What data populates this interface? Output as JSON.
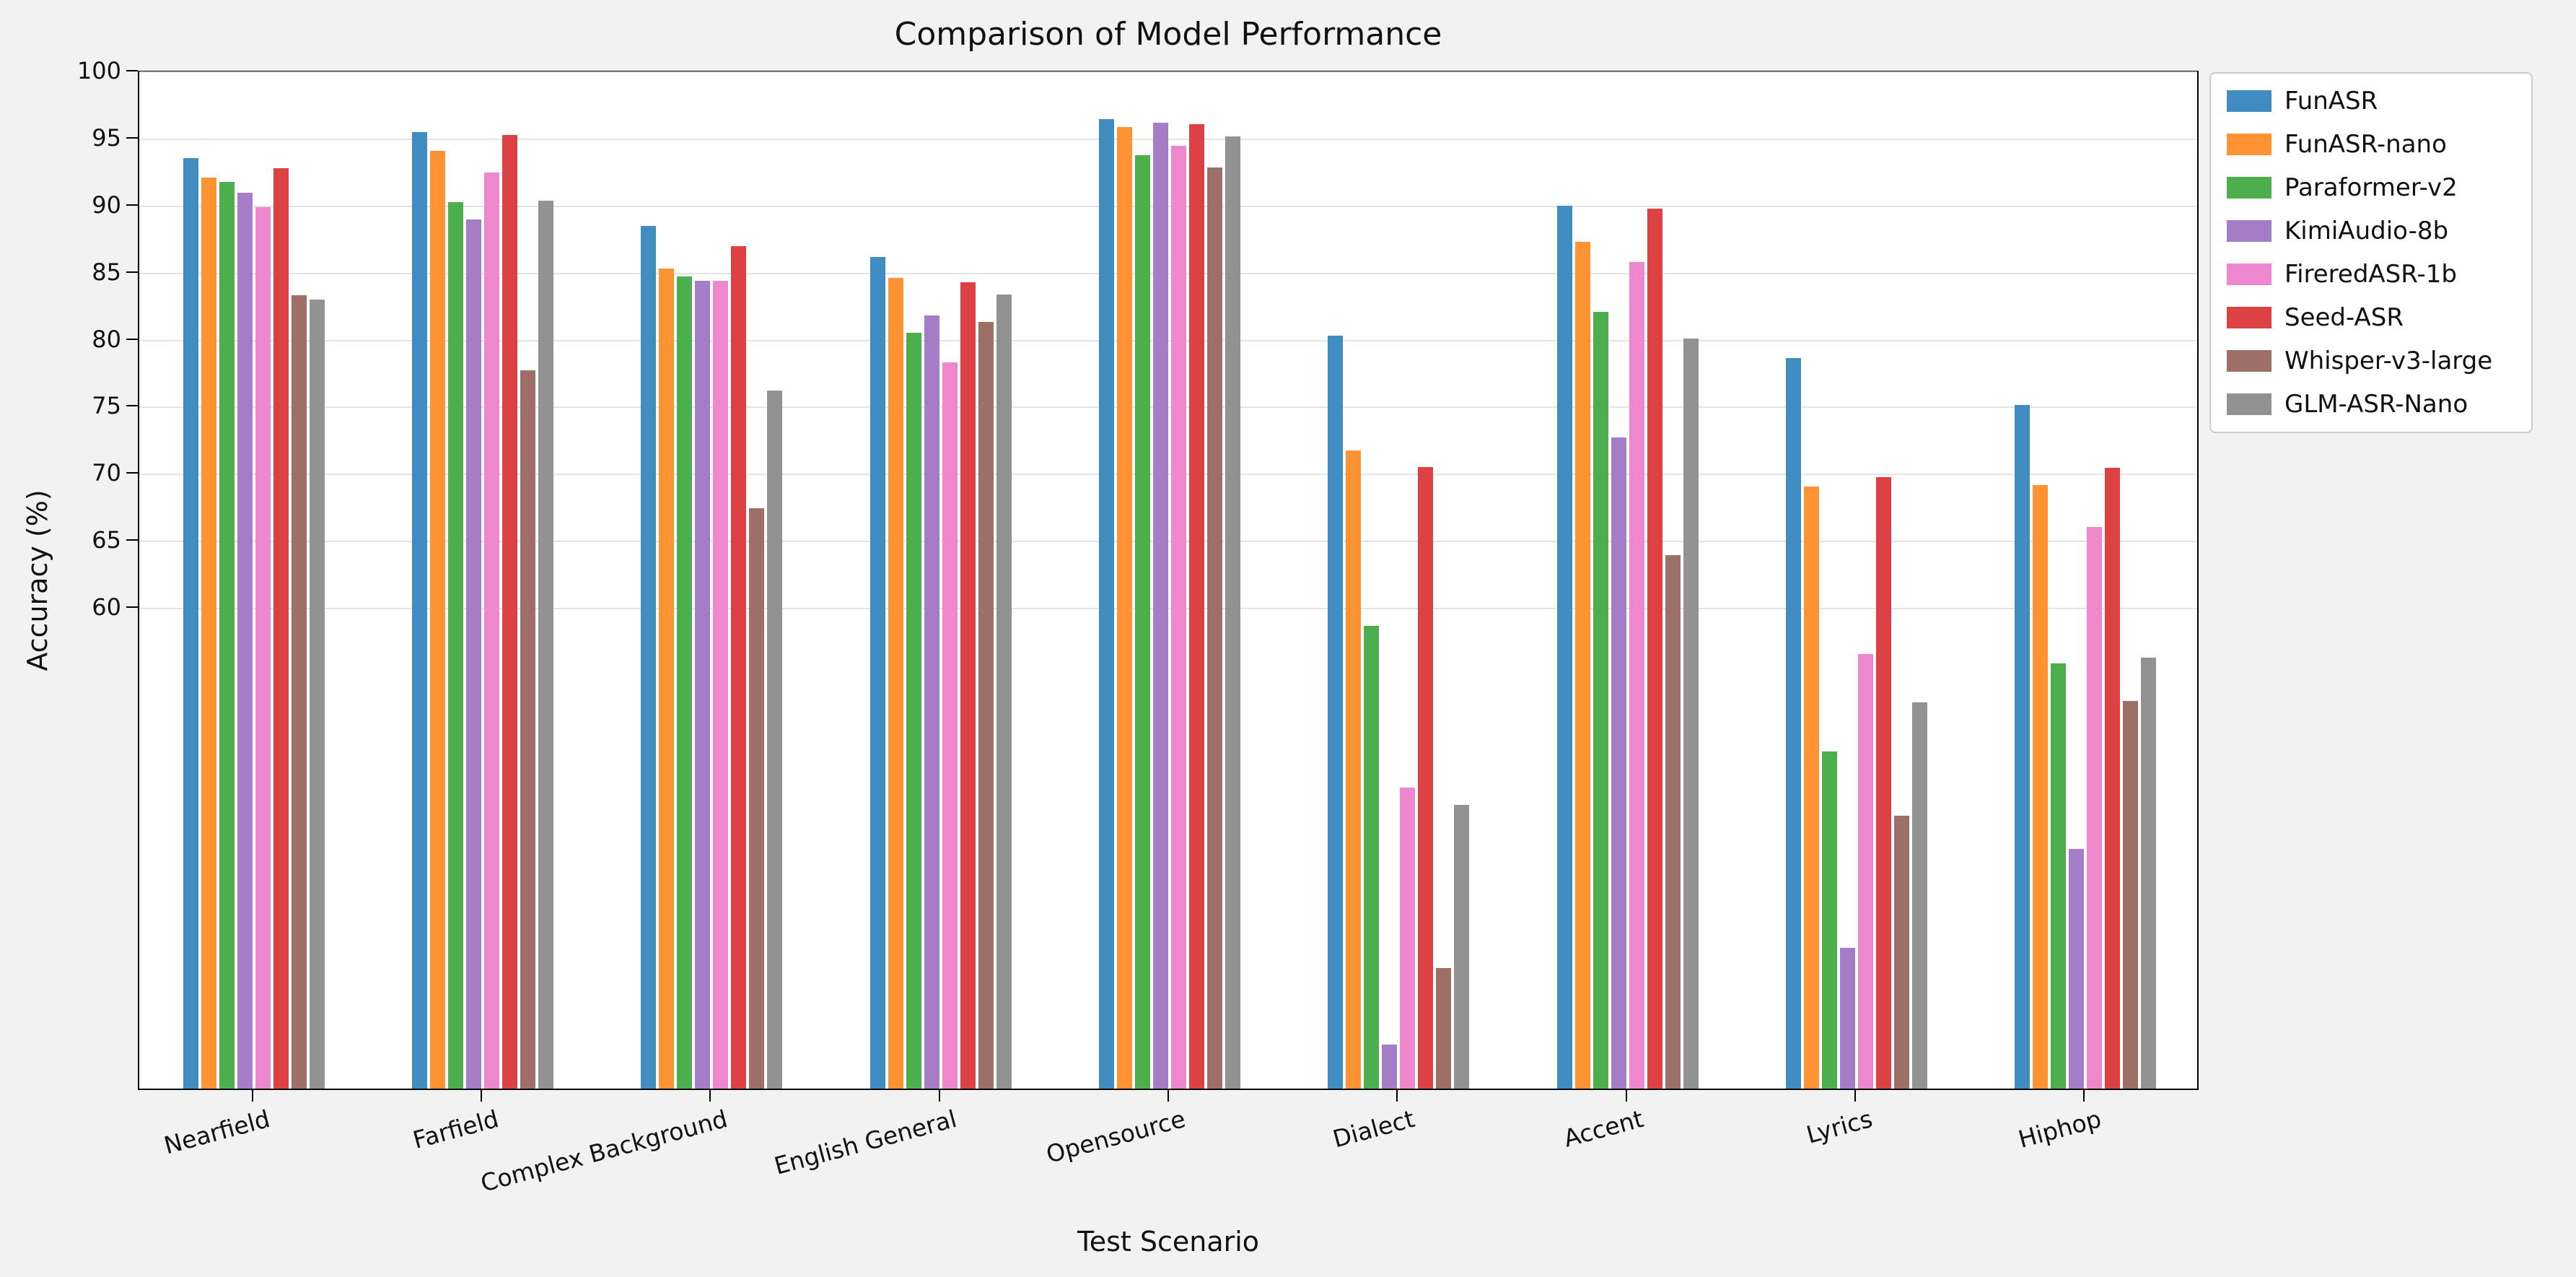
{
  "chart_data": {
    "type": "bar",
    "title": "Comparison of Model Performance",
    "xlabel": "Test Scenario",
    "ylabel": "Accuracy (%)",
    "ylim": [
      24,
      100
    ],
    "yticks": [
      100,
      95,
      90,
      85,
      80,
      75,
      70,
      65,
      60
    ],
    "grid": true,
    "legend_position": "outside-upper-right",
    "categories": [
      "Nearfield",
      "Farfield",
      "Complex Background",
      "English General",
      "Opensource",
      "Dialect",
      "Accent",
      "Lyrics",
      "Hiphop"
    ],
    "series": [
      {
        "name": "FunASR",
        "color": "#408BBF",
        "values": [
          93.6,
          95.5,
          88.5,
          86.2,
          96.5,
          80.3,
          90.0,
          78.6,
          75.1
        ]
      },
      {
        "name": "FunASR-nano",
        "color": "#FF9232",
        "values": [
          92.1,
          94.1,
          85.3,
          84.6,
          95.9,
          71.7,
          87.3,
          69.0,
          69.1
        ]
      },
      {
        "name": "Paraformer-v2",
        "color": "#4CAE4C",
        "values": [
          91.8,
          90.3,
          84.7,
          80.5,
          93.8,
          58.6,
          82.1,
          49.2,
          55.8
        ]
      },
      {
        "name": "KimiAudio-8b",
        "color": "#A47DC6",
        "values": [
          91.0,
          89.0,
          84.4,
          81.8,
          96.2,
          27.3,
          72.7,
          34.5,
          41.9
        ]
      },
      {
        "name": "FireredASR-1b",
        "color": "#EF87CF",
        "values": [
          89.9,
          92.5,
          84.4,
          78.3,
          94.5,
          46.5,
          85.8,
          56.5,
          66.0
        ]
      },
      {
        "name": "Seed-ASR",
        "color": "#DC4243",
        "values": [
          92.8,
          95.3,
          87.0,
          84.3,
          96.1,
          70.5,
          89.8,
          69.7,
          70.4
        ]
      },
      {
        "name": "Whisper-v3-large",
        "color": "#9D6F66",
        "values": [
          83.3,
          77.7,
          67.4,
          81.3,
          92.9,
          33.0,
          63.9,
          44.4,
          53.0
        ]
      },
      {
        "name": "GLM-ASR-Nano",
        "color": "#929292",
        "values": [
          83.0,
          90.4,
          76.2,
          83.4,
          95.2,
          45.2,
          80.1,
          52.9,
          56.2
        ]
      }
    ]
  }
}
